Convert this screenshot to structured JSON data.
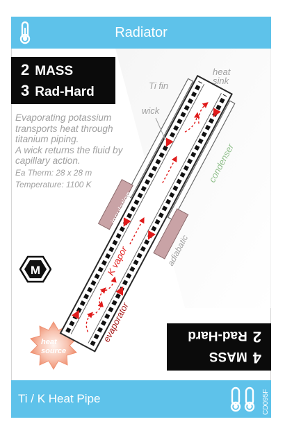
{
  "card": {
    "title": "Radiator",
    "name": "Ti / K Heat Pipe",
    "code": "CD095F",
    "stats": {
      "mass_value": "2",
      "mass_label": "MASS",
      "radhard_value": "3",
      "radhard_label": "Rad-Hard"
    },
    "flipped_stats": {
      "value1": "4",
      "label1": "MASS",
      "value2": "2",
      "label2": "Rad-Hard"
    },
    "description": [
      "Evaporating potassium transports heat through titanium piping.",
      "A wick returns the fluid by capillary action."
    ],
    "specs": {
      "ea_therm": "Ea Therm: 28 x 28 m",
      "temperature": "Temperature: 1100 K"
    },
    "badge": "M",
    "icons": {
      "top_left": "thermometer-icon",
      "bottom_right": "twin-thermometer-icon"
    }
  },
  "diagram": {
    "labels": {
      "heat_sink": "heat\nsink",
      "ti_fin": "Ti fin",
      "wick": "wick",
      "condenser": "condenser",
      "insulation": "insulation",
      "adiabatic": "adiabatic",
      "k_vapor": "K vapor",
      "evaporator": "evaporator",
      "heat_source": "heat\nsource"
    },
    "colors": {
      "text_gray": "#a0a0a0",
      "condenser_green": "#8fbf8a",
      "vapor_red": "#e01b1b",
      "insulation_brown": "#c9a3a6",
      "evaporator_dark_red": "#a81e1e",
      "heat_source_peach": "#f4b19a"
    }
  }
}
